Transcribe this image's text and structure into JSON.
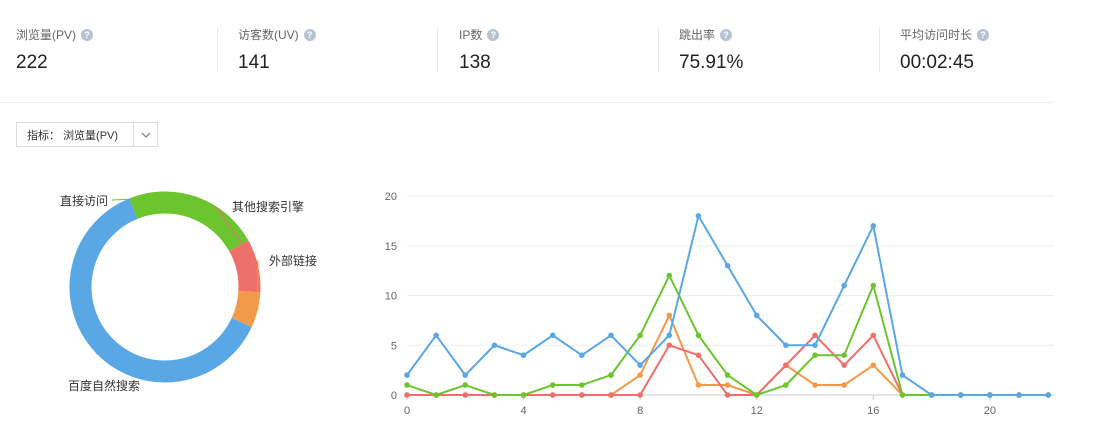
{
  "stats": [
    {
      "label": "浏览量(PV)",
      "value": "222"
    },
    {
      "label": "访客数(UV)",
      "value": "141"
    },
    {
      "label": "IP数",
      "value": "138"
    },
    {
      "label": "跳出率",
      "value": "75.91%"
    },
    {
      "label": "平均访问时长",
      "value": "00:02:45"
    }
  ],
  "help_icon": "?",
  "metric_selector": {
    "prefix": "指标：",
    "value": "浏览量(PV)",
    "icon": "chevron-down-icon"
  },
  "colors": {
    "blue": "#5aa7e5",
    "green": "#6cc42f",
    "red": "#ef6f6c",
    "orange": "#f39a4a"
  },
  "chart_data": [
    {
      "type": "pie",
      "donut": true,
      "slices": [
        {
          "name": "百度自然搜索",
          "value": 62,
          "color": "#5aa7e5"
        },
        {
          "name": "直接访问",
          "value": 23,
          "color": "#6cc42f"
        },
        {
          "name": "其他搜索引擎",
          "value": 9,
          "color": "#ef6f6c"
        },
        {
          "name": "外部链接",
          "value": 6,
          "color": "#f39a4a"
        }
      ]
    },
    {
      "type": "line",
      "x": [
        0,
        1,
        2,
        3,
        4,
        5,
        6,
        7,
        8,
        9,
        10,
        11,
        12,
        13,
        14,
        15,
        16,
        17,
        18,
        19,
        20,
        21,
        22
      ],
      "xticks": [
        0,
        4,
        8,
        12,
        16,
        20
      ],
      "xlim": [
        0,
        22.2
      ],
      "ylim": [
        0,
        20
      ],
      "yticks": [
        0,
        5,
        10,
        15,
        20
      ],
      "grid": true,
      "series": [
        {
          "color": "#5aa7e5",
          "values": [
            2,
            6,
            2,
            5,
            4,
            6,
            4,
            6,
            3,
            6,
            18,
            13,
            8,
            5,
            5,
            11,
            17,
            2,
            0,
            0,
            0,
            0,
            0
          ]
        },
        {
          "color": "#6cc42f",
          "values": [
            1,
            0,
            1,
            0,
            0,
            1,
            1,
            2,
            6,
            12,
            6,
            2,
            0,
            1,
            4,
            4,
            11,
            0,
            0,
            0,
            0,
            0,
            0
          ]
        },
        {
          "color": "#ef6f6c",
          "values": [
            0,
            0,
            0,
            0,
            0,
            0,
            0,
            0,
            0,
            5,
            4,
            0,
            0,
            3,
            6,
            3,
            6,
            0,
            0,
            0,
            0,
            0,
            0
          ]
        },
        {
          "color": "#f39a4a",
          "values": [
            0,
            0,
            0,
            0,
            0,
            0,
            0,
            0,
            2,
            8,
            1,
            1,
            0,
            3,
            1,
            1,
            3,
            0,
            0,
            0,
            0,
            0,
            0
          ]
        }
      ]
    }
  ]
}
